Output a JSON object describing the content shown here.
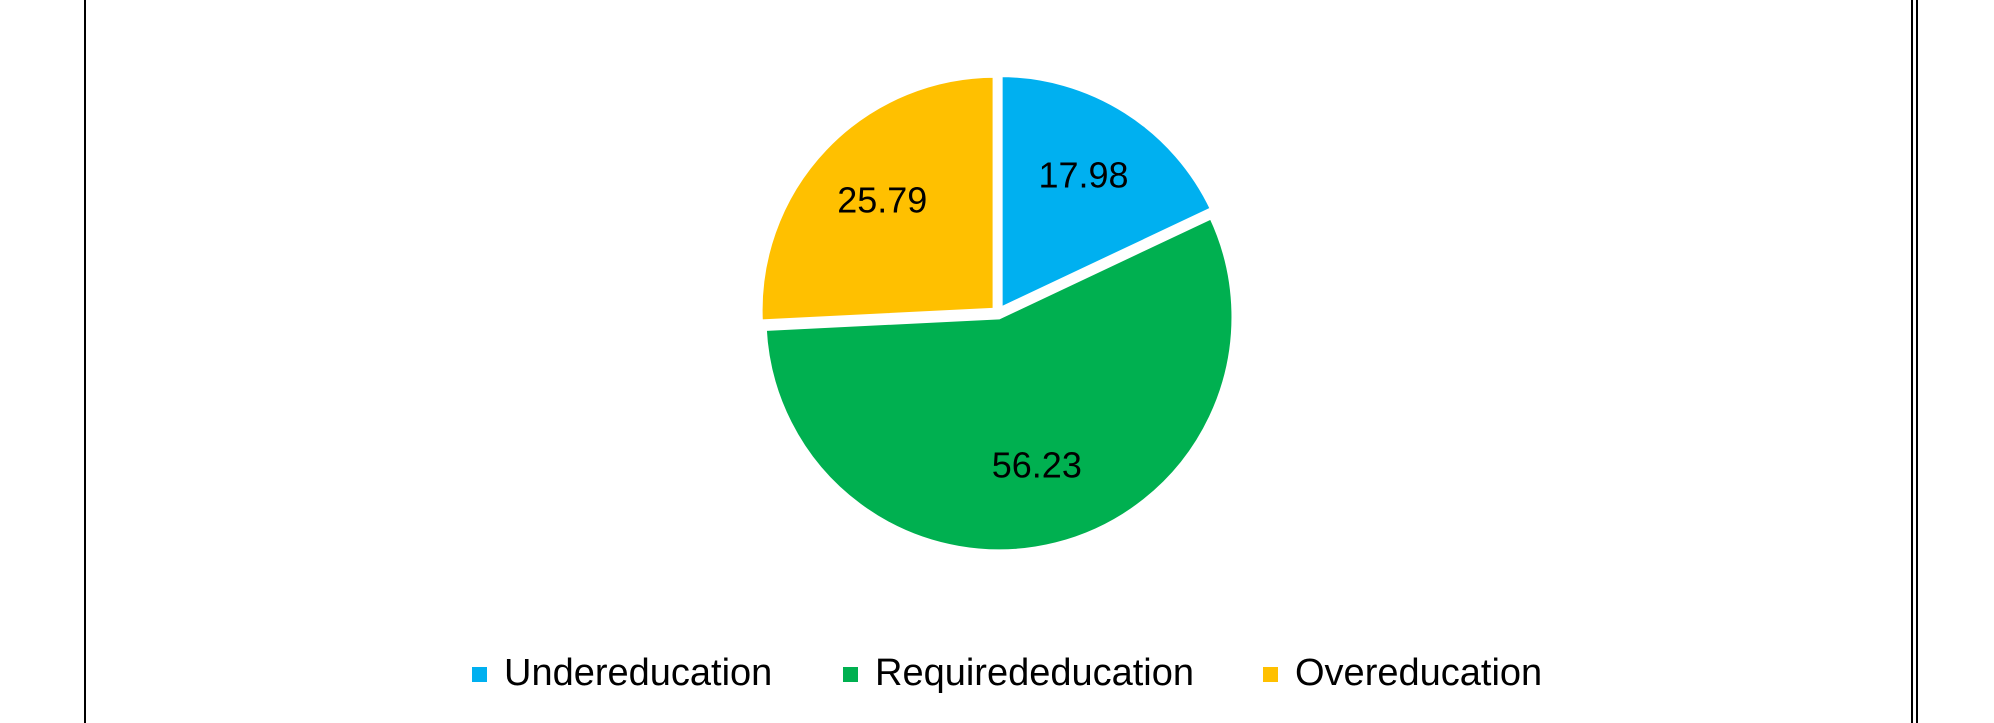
{
  "chart_data": {
    "type": "pie",
    "categories": [
      "Undereducation",
      "Requirededucation",
      "Overeducation"
    ],
    "values": [
      17.98,
      56.23,
      25.79
    ],
    "colors": [
      "#00b0f0",
      "#00b050",
      "#ffc000"
    ],
    "legend": "bottom"
  }
}
